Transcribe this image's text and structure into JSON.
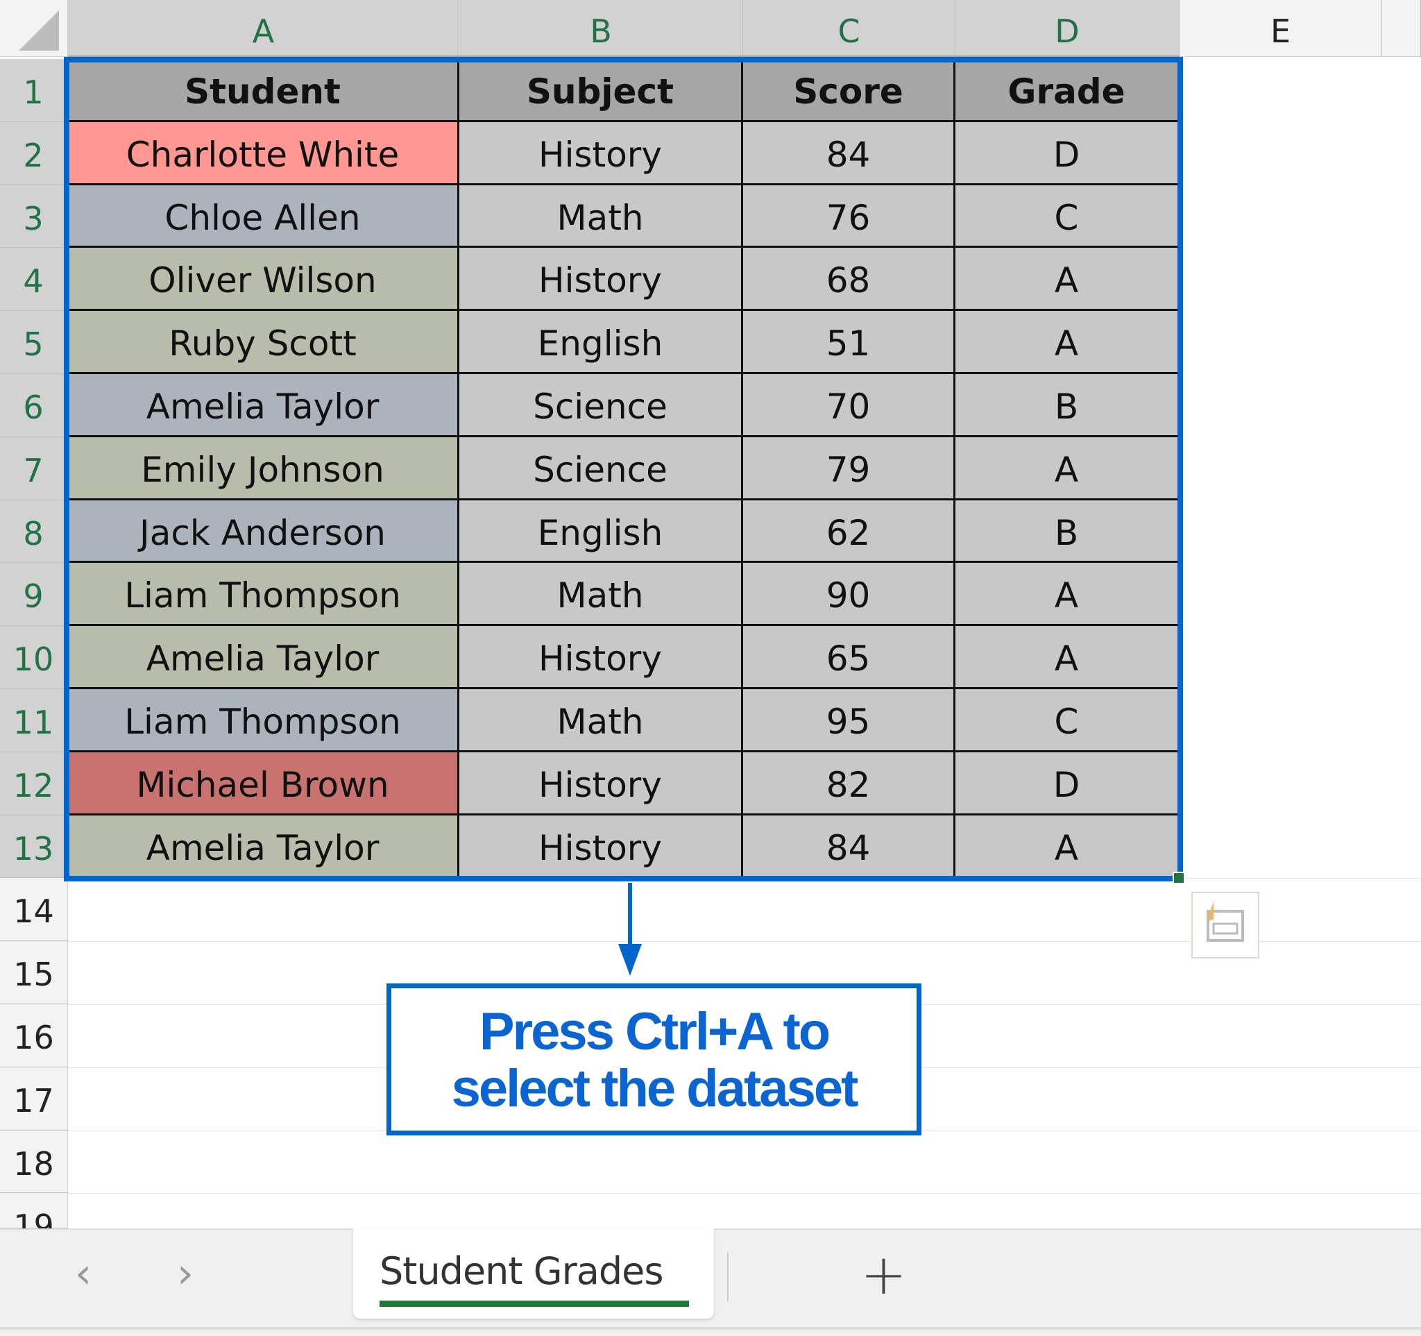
{
  "columns": [
    "A",
    "B",
    "C",
    "D",
    "E"
  ],
  "row_numbers": [
    "1",
    "2",
    "3",
    "4",
    "5",
    "6",
    "7",
    "8",
    "9",
    "10",
    "11",
    "12",
    "13",
    "14",
    "15",
    "16",
    "17",
    "18",
    "19"
  ],
  "table": {
    "headers": [
      "Student",
      "Subject",
      "Score",
      "Grade"
    ],
    "rows": [
      {
        "student": "Charlotte White",
        "subject": "History",
        "score": "84",
        "grade": "D",
        "fill": "#ff9893"
      },
      {
        "student": "Chloe Allen",
        "subject": "Math",
        "score": "76",
        "grade": "C",
        "fill": "#adb3bd"
      },
      {
        "student": "Oliver Wilson",
        "subject": "History",
        "score": "68",
        "grade": "A",
        "fill": "#b8bcaa"
      },
      {
        "student": "Ruby Scott",
        "subject": "English",
        "score": "51",
        "grade": "A",
        "fill": "#b8bcaa"
      },
      {
        "student": "Amelia Taylor",
        "subject": "Science",
        "score": "70",
        "grade": "B",
        "fill": "#adb3bd"
      },
      {
        "student": "Emily Johnson",
        "subject": "Science",
        "score": "79",
        "grade": "A",
        "fill": "#b8bcaa"
      },
      {
        "student": "Jack Anderson",
        "subject": "English",
        "score": "62",
        "grade": "B",
        "fill": "#adb3bd"
      },
      {
        "student": "Liam Thompson",
        "subject": "Math",
        "score": "90",
        "grade": "A",
        "fill": "#b8bcaa"
      },
      {
        "student": "Amelia Taylor",
        "subject": "History",
        "score": "65",
        "grade": "A",
        "fill": "#b8bcaa"
      },
      {
        "student": "Liam Thompson",
        "subject": "Math",
        "score": "95",
        "grade": "C",
        "fill": "#adb3bd"
      },
      {
        "student": "Michael Brown",
        "subject": "History",
        "score": "82",
        "grade": "D",
        "fill": "#c87370"
      },
      {
        "student": "Amelia Taylor",
        "subject": "History",
        "score": "84",
        "grade": "A",
        "fill": "#b8bcaa"
      }
    ]
  },
  "colors": {
    "selection": "#0066cc",
    "header_fill": "#a6a6a6",
    "data_fill": "#c8c8c8"
  },
  "callout": {
    "line1": "Press Ctrl+A to",
    "line2": "select the dataset"
  },
  "sheet_tabs": {
    "active": "Student Grades",
    "prev_icon": "‹",
    "next_icon": "›",
    "add_icon": "+"
  }
}
